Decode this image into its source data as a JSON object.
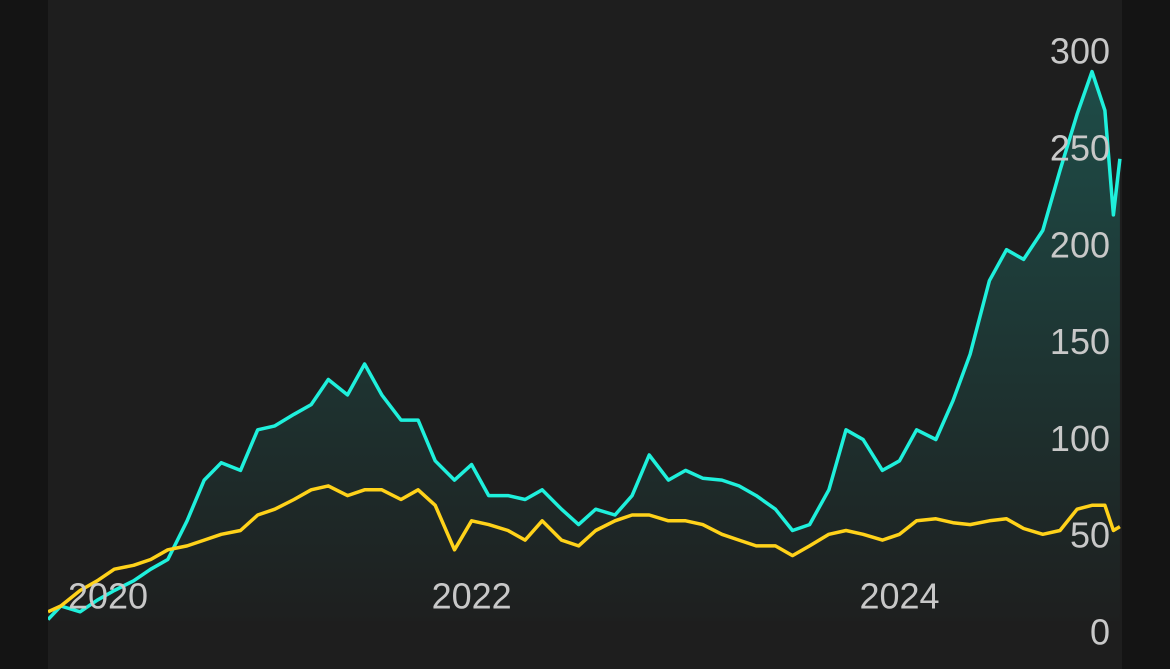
{
  "chart_data": {
    "type": "line",
    "x": [
      2020.02,
      2020.08,
      2020.17,
      2020.25,
      2020.33,
      2020.42,
      2020.5,
      2020.58,
      2020.67,
      2020.75,
      2020.83,
      2020.92,
      2021,
      2021.08,
      2021.17,
      2021.25,
      2021.33,
      2021.42,
      2021.5,
      2021.58,
      2021.67,
      2021.75,
      2021.83,
      2021.92,
      2022,
      2022.08,
      2022.17,
      2022.25,
      2022.33,
      2022.42,
      2022.5,
      2022.58,
      2022.67,
      2022.75,
      2022.83,
      2022.92,
      2023,
      2023.08,
      2023.17,
      2023.25,
      2023.33,
      2023.42,
      2023.5,
      2023.58,
      2023.67,
      2023.75,
      2023.83,
      2023.92,
      2024,
      2024.08,
      2024.17,
      2024.25,
      2024.33,
      2024.42,
      2024.5,
      2024.58,
      2024.67,
      2024.75,
      2024.83,
      2024.9,
      2024.96,
      2025,
      2025.03
    ],
    "series": [
      {
        "color": "#1ff0dc",
        "area": true,
        "values": [
          8,
          15,
          12,
          18,
          23,
          28,
          34,
          39,
          59,
          80,
          89,
          85,
          106,
          108,
          114,
          119,
          132,
          124,
          140,
          124,
          111,
          111,
          90,
          80,
          88,
          72,
          72,
          70,
          75,
          65,
          57,
          65,
          62,
          72,
          93,
          80,
          85,
          81,
          80,
          77,
          72,
          65,
          54,
          57,
          75,
          106,
          101,
          85,
          90,
          106,
          101,
          121,
          145,
          183,
          199,
          194,
          209,
          240,
          269,
          291,
          271,
          217,
          246
        ]
      },
      {
        "color": "#ffd21a",
        "values": [
          12,
          15,
          23,
          28,
          34,
          36,
          39,
          44,
          46,
          49,
          52,
          54,
          62,
          65,
          70,
          75,
          77,
          72,
          75,
          75,
          70,
          75,
          67,
          44,
          59,
          57,
          54,
          49,
          59,
          49,
          46,
          54,
          59,
          62,
          62,
          59,
          59,
          57,
          52,
          49,
          46,
          46,
          41,
          46,
          52,
          54,
          52,
          49,
          52,
          59,
          60,
          58,
          57,
          59,
          60,
          55,
          52,
          54,
          65,
          67,
          67,
          54,
          56
        ]
      }
    ],
    "xlim": [
      2020.02,
      2025.04
    ],
    "xticks": [
      2020,
      2022,
      2024
    ],
    "ylim": [
      0,
      328
    ],
    "yticks": [
      0,
      50,
      100,
      150,
      200,
      250,
      300
    ]
  }
}
